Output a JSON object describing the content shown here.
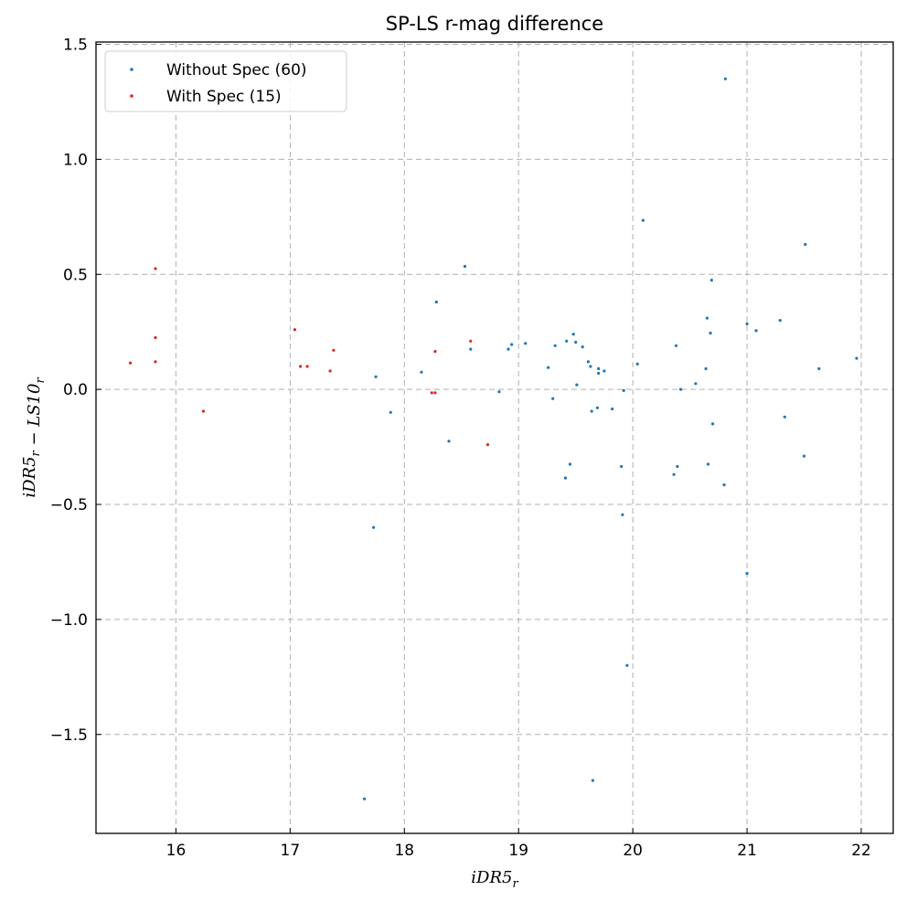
{
  "chart_data": {
    "type": "scatter",
    "title": "SP-LS r-mag difference",
    "xlabel": "iDR5_r",
    "ylabel": "iDR5_r − LS10_r",
    "xlim": [
      15.3,
      22.28
    ],
    "ylim": [
      -1.93,
      1.51
    ],
    "xticks": [
      16,
      17,
      18,
      19,
      20,
      21,
      22
    ],
    "yticks": [
      1.5,
      1.0,
      0.5,
      0.0,
      -0.5,
      -1.0,
      -1.5
    ],
    "xtick_labels": [
      "16",
      "17",
      "18",
      "19",
      "20",
      "21",
      "22"
    ],
    "ytick_labels": [
      "1.5",
      "1.0",
      "0.5",
      "0.0",
      "−0.5",
      "−1.0",
      "−1.5"
    ],
    "grid": true,
    "legend_position": "top-left",
    "series": [
      {
        "name": "Without Spec (60)",
        "color": "#1f77b4",
        "points": [
          [
            17.65,
            -1.78
          ],
          [
            17.73,
            -0.6
          ],
          [
            17.75,
            0.055
          ],
          [
            17.88,
            -0.1
          ],
          [
            18.15,
            0.075
          ],
          [
            18.28,
            0.38
          ],
          [
            18.39,
            -0.225
          ],
          [
            18.53,
            0.535
          ],
          [
            18.58,
            0.175
          ],
          [
            18.83,
            -0.01
          ],
          [
            18.91,
            0.175
          ],
          [
            18.94,
            0.195
          ],
          [
            19.06,
            0.2
          ],
          [
            19.26,
            0.095
          ],
          [
            19.3,
            -0.04
          ],
          [
            19.32,
            0.19
          ],
          [
            19.41,
            -0.385
          ],
          [
            19.42,
            0.21
          ],
          [
            19.45,
            -0.325
          ],
          [
            19.48,
            0.24
          ],
          [
            19.5,
            0.205
          ],
          [
            19.51,
            0.02
          ],
          [
            19.56,
            0.185
          ],
          [
            19.61,
            0.12
          ],
          [
            19.63,
            0.1
          ],
          [
            19.64,
            -0.095
          ],
          [
            19.65,
            -1.7
          ],
          [
            19.69,
            -0.08
          ],
          [
            19.7,
            0.09
          ],
          [
            19.7,
            0.07
          ],
          [
            19.75,
            0.08
          ],
          [
            19.82,
            -0.085
          ],
          [
            19.9,
            -0.335
          ],
          [
            19.91,
            -0.545
          ],
          [
            19.92,
            -0.005
          ],
          [
            19.95,
            -1.2
          ],
          [
            20.04,
            0.11
          ],
          [
            20.09,
            0.735
          ],
          [
            20.36,
            -0.37
          ],
          [
            20.38,
            0.19
          ],
          [
            20.39,
            -0.335
          ],
          [
            20.42,
            0.0
          ],
          [
            20.55,
            0.025
          ],
          [
            20.64,
            0.09
          ],
          [
            20.65,
            0.31
          ],
          [
            20.66,
            -0.325
          ],
          [
            20.68,
            0.245
          ],
          [
            20.69,
            0.475
          ],
          [
            20.7,
            -0.15
          ],
          [
            20.8,
            -0.415
          ],
          [
            20.81,
            1.35
          ],
          [
            21.0,
            0.285
          ],
          [
            21.0,
            -0.8
          ],
          [
            21.08,
            0.255
          ],
          [
            21.29,
            0.3
          ],
          [
            21.33,
            -0.12
          ],
          [
            21.5,
            -0.29
          ],
          [
            21.51,
            0.63
          ],
          [
            21.63,
            0.09
          ],
          [
            21.96,
            0.135
          ]
        ]
      },
      {
        "name": "With Spec (15)",
        "color": "#d62728",
        "points": [
          [
            15.6,
            0.115
          ],
          [
            15.82,
            0.525
          ],
          [
            15.82,
            0.225
          ],
          [
            15.82,
            0.12
          ],
          [
            16.24,
            -0.095
          ],
          [
            17.04,
            0.26
          ],
          [
            17.09,
            0.1
          ],
          [
            17.15,
            0.1
          ],
          [
            17.35,
            0.08
          ],
          [
            17.38,
            0.17
          ],
          [
            18.24,
            -0.015
          ],
          [
            18.27,
            0.165
          ],
          [
            18.27,
            -0.015
          ],
          [
            18.58,
            0.21
          ],
          [
            18.73,
            -0.24
          ]
        ]
      }
    ]
  }
}
